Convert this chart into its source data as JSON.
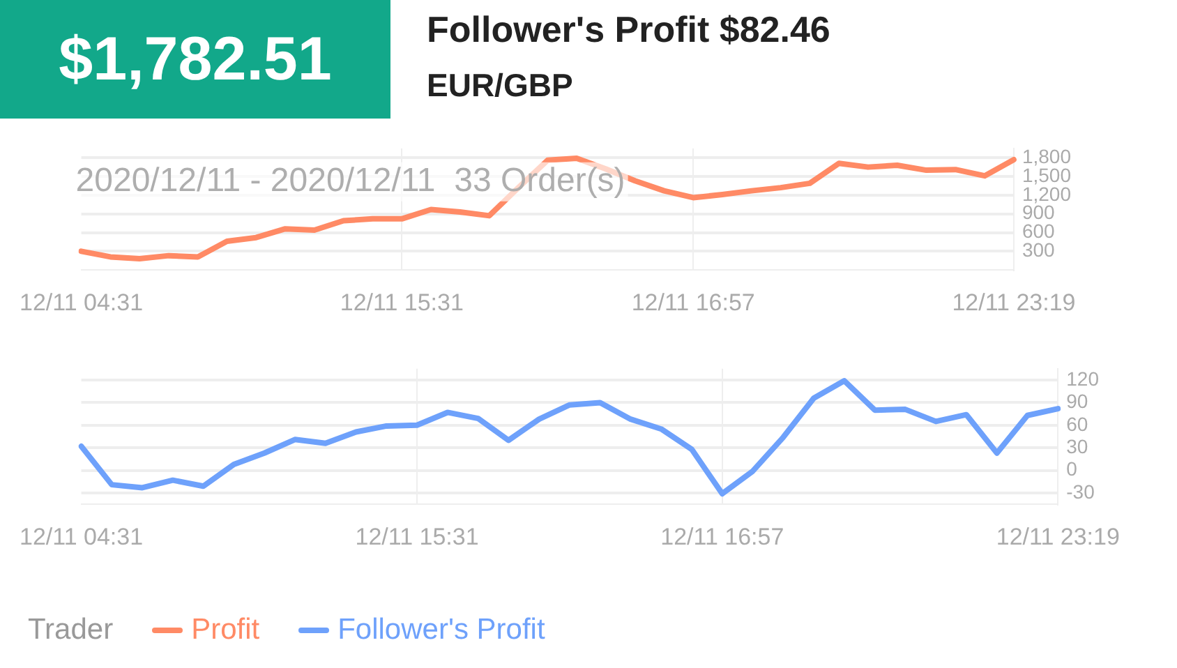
{
  "chart_data": [
    {
      "type": "line",
      "title": "Follower's Profit $82.46",
      "subtitle": "EUR/GBP",
      "annotations": [
        "$1,782.51",
        "2020/12/11 - 2020/12/11  33 Order(s)"
      ],
      "categories": [
        "12/11 04:31",
        null,
        null,
        null,
        null,
        null,
        null,
        null,
        null,
        null,
        null,
        "12/11 15:31",
        null,
        null,
        null,
        null,
        null,
        null,
        null,
        null,
        null,
        "12/11 16:57",
        null,
        null,
        null,
        null,
        null,
        null,
        null,
        null,
        null,
        null,
        "12/11 23:19"
      ],
      "series": [
        {
          "name": "Profit",
          "color": "#ff8a65",
          "values": [
            300,
            210,
            180,
            230,
            210,
            460,
            520,
            660,
            640,
            790,
            820,
            820,
            970,
            930,
            870,
            1320,
            1760,
            1790,
            1620,
            1430,
            1270,
            1160,
            1210,
            1270,
            1320,
            1390,
            1710,
            1650,
            1680,
            1600,
            1610,
            1510,
            1770
          ]
        }
      ],
      "ylim": [
        0,
        1950
      ],
      "yticks": [
        300,
        600,
        900,
        {
          "value": 1200,
          "label": "1,200"
        },
        {
          "value": 1500,
          "label": "1,500"
        },
        {
          "value": 1800,
          "label": "1,800"
        }
      ],
      "grid": true,
      "legend": "bottom"
    },
    {
      "type": "line",
      "annotations": [
        "Trader"
      ],
      "categories": [
        "12/11 04:31",
        null,
        null,
        null,
        null,
        null,
        null,
        null,
        null,
        null,
        null,
        "12/11 15:31",
        null,
        null,
        null,
        null,
        null,
        null,
        null,
        null,
        null,
        "12/11 16:57",
        null,
        null,
        null,
        null,
        null,
        null,
        null,
        null,
        null,
        null,
        "12/11 23:19"
      ],
      "series": [
        {
          "name": "Follower's Profit",
          "color": "#6ea1fb",
          "values": [
            32,
            -19,
            -23,
            -13,
            -21,
            8,
            23,
            41,
            36,
            51,
            59,
            60,
            77,
            69,
            40,
            68,
            87,
            90,
            68,
            55,
            28,
            -31,
            -1,
            44,
            96,
            119,
            80,
            81,
            65,
            74,
            23,
            73,
            82
          ]
        }
      ],
      "ylim": [
        -45,
        135
      ],
      "yticks": [
        -30,
        0,
        30,
        60,
        90,
        120
      ],
      "grid": true,
      "legend": "bottom"
    }
  ]
}
